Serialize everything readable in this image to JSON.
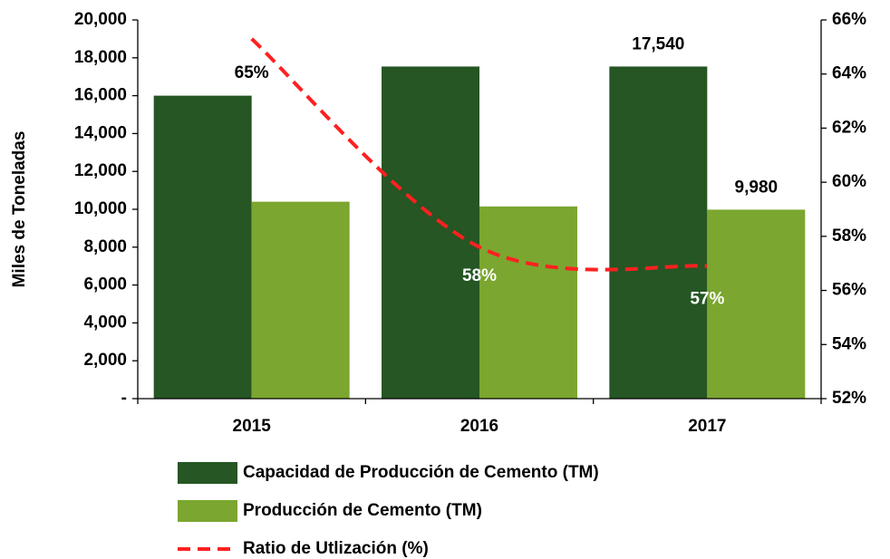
{
  "chart_data": {
    "type": "bar",
    "categories": [
      "2015",
      "2016",
      "2017"
    ],
    "y_label": "Miles de Toneladas",
    "ylim": [
      0,
      20000
    ],
    "yticks": [
      {
        "value": 0,
        "label": "-"
      },
      {
        "value": 2000,
        "label": "2,000"
      },
      {
        "value": 4000,
        "label": "4,000"
      },
      {
        "value": 6000,
        "label": "6,000"
      },
      {
        "value": 8000,
        "label": "8,000"
      },
      {
        "value": 10000,
        "label": "10,000"
      },
      {
        "value": 12000,
        "label": "12,000"
      },
      {
        "value": 14000,
        "label": "14,000"
      },
      {
        "value": 16000,
        "label": "16,000"
      },
      {
        "value": 18000,
        "label": "18,000"
      },
      {
        "value": 20000,
        "label": "20,000"
      }
    ],
    "y2lim": [
      52,
      66
    ],
    "y2ticks": [
      {
        "value": 52,
        "label": "52%"
      },
      {
        "value": 54,
        "label": "54%"
      },
      {
        "value": 56,
        "label": "56%"
      },
      {
        "value": 58,
        "label": "58%"
      },
      {
        "value": 60,
        "label": "60%"
      },
      {
        "value": 62,
        "label": "62%"
      },
      {
        "value": 64,
        "label": "64%"
      },
      {
        "value": 66,
        "label": "66%"
      }
    ],
    "series": [
      {
        "name": "Capacidad de Producción de Cemento (TM)",
        "type": "bar",
        "color": "#255623",
        "values": [
          16000,
          17540,
          17540
        ],
        "value_labels": [
          null,
          null,
          "17,540"
        ]
      },
      {
        "name": "Producción de Cemento (TM)",
        "type": "bar",
        "color": "#7ba62f",
        "values": [
          10400,
          10150,
          9980
        ],
        "value_labels": [
          null,
          null,
          "9,980"
        ]
      },
      {
        "name": "Ratio de Utlización (%)",
        "type": "line",
        "axis": "y2",
        "color": "#ff2020",
        "values": [
          65.3,
          57.6,
          56.9
        ],
        "value_labels": [
          "65%",
          "58%",
          "57%"
        ]
      }
    ]
  }
}
